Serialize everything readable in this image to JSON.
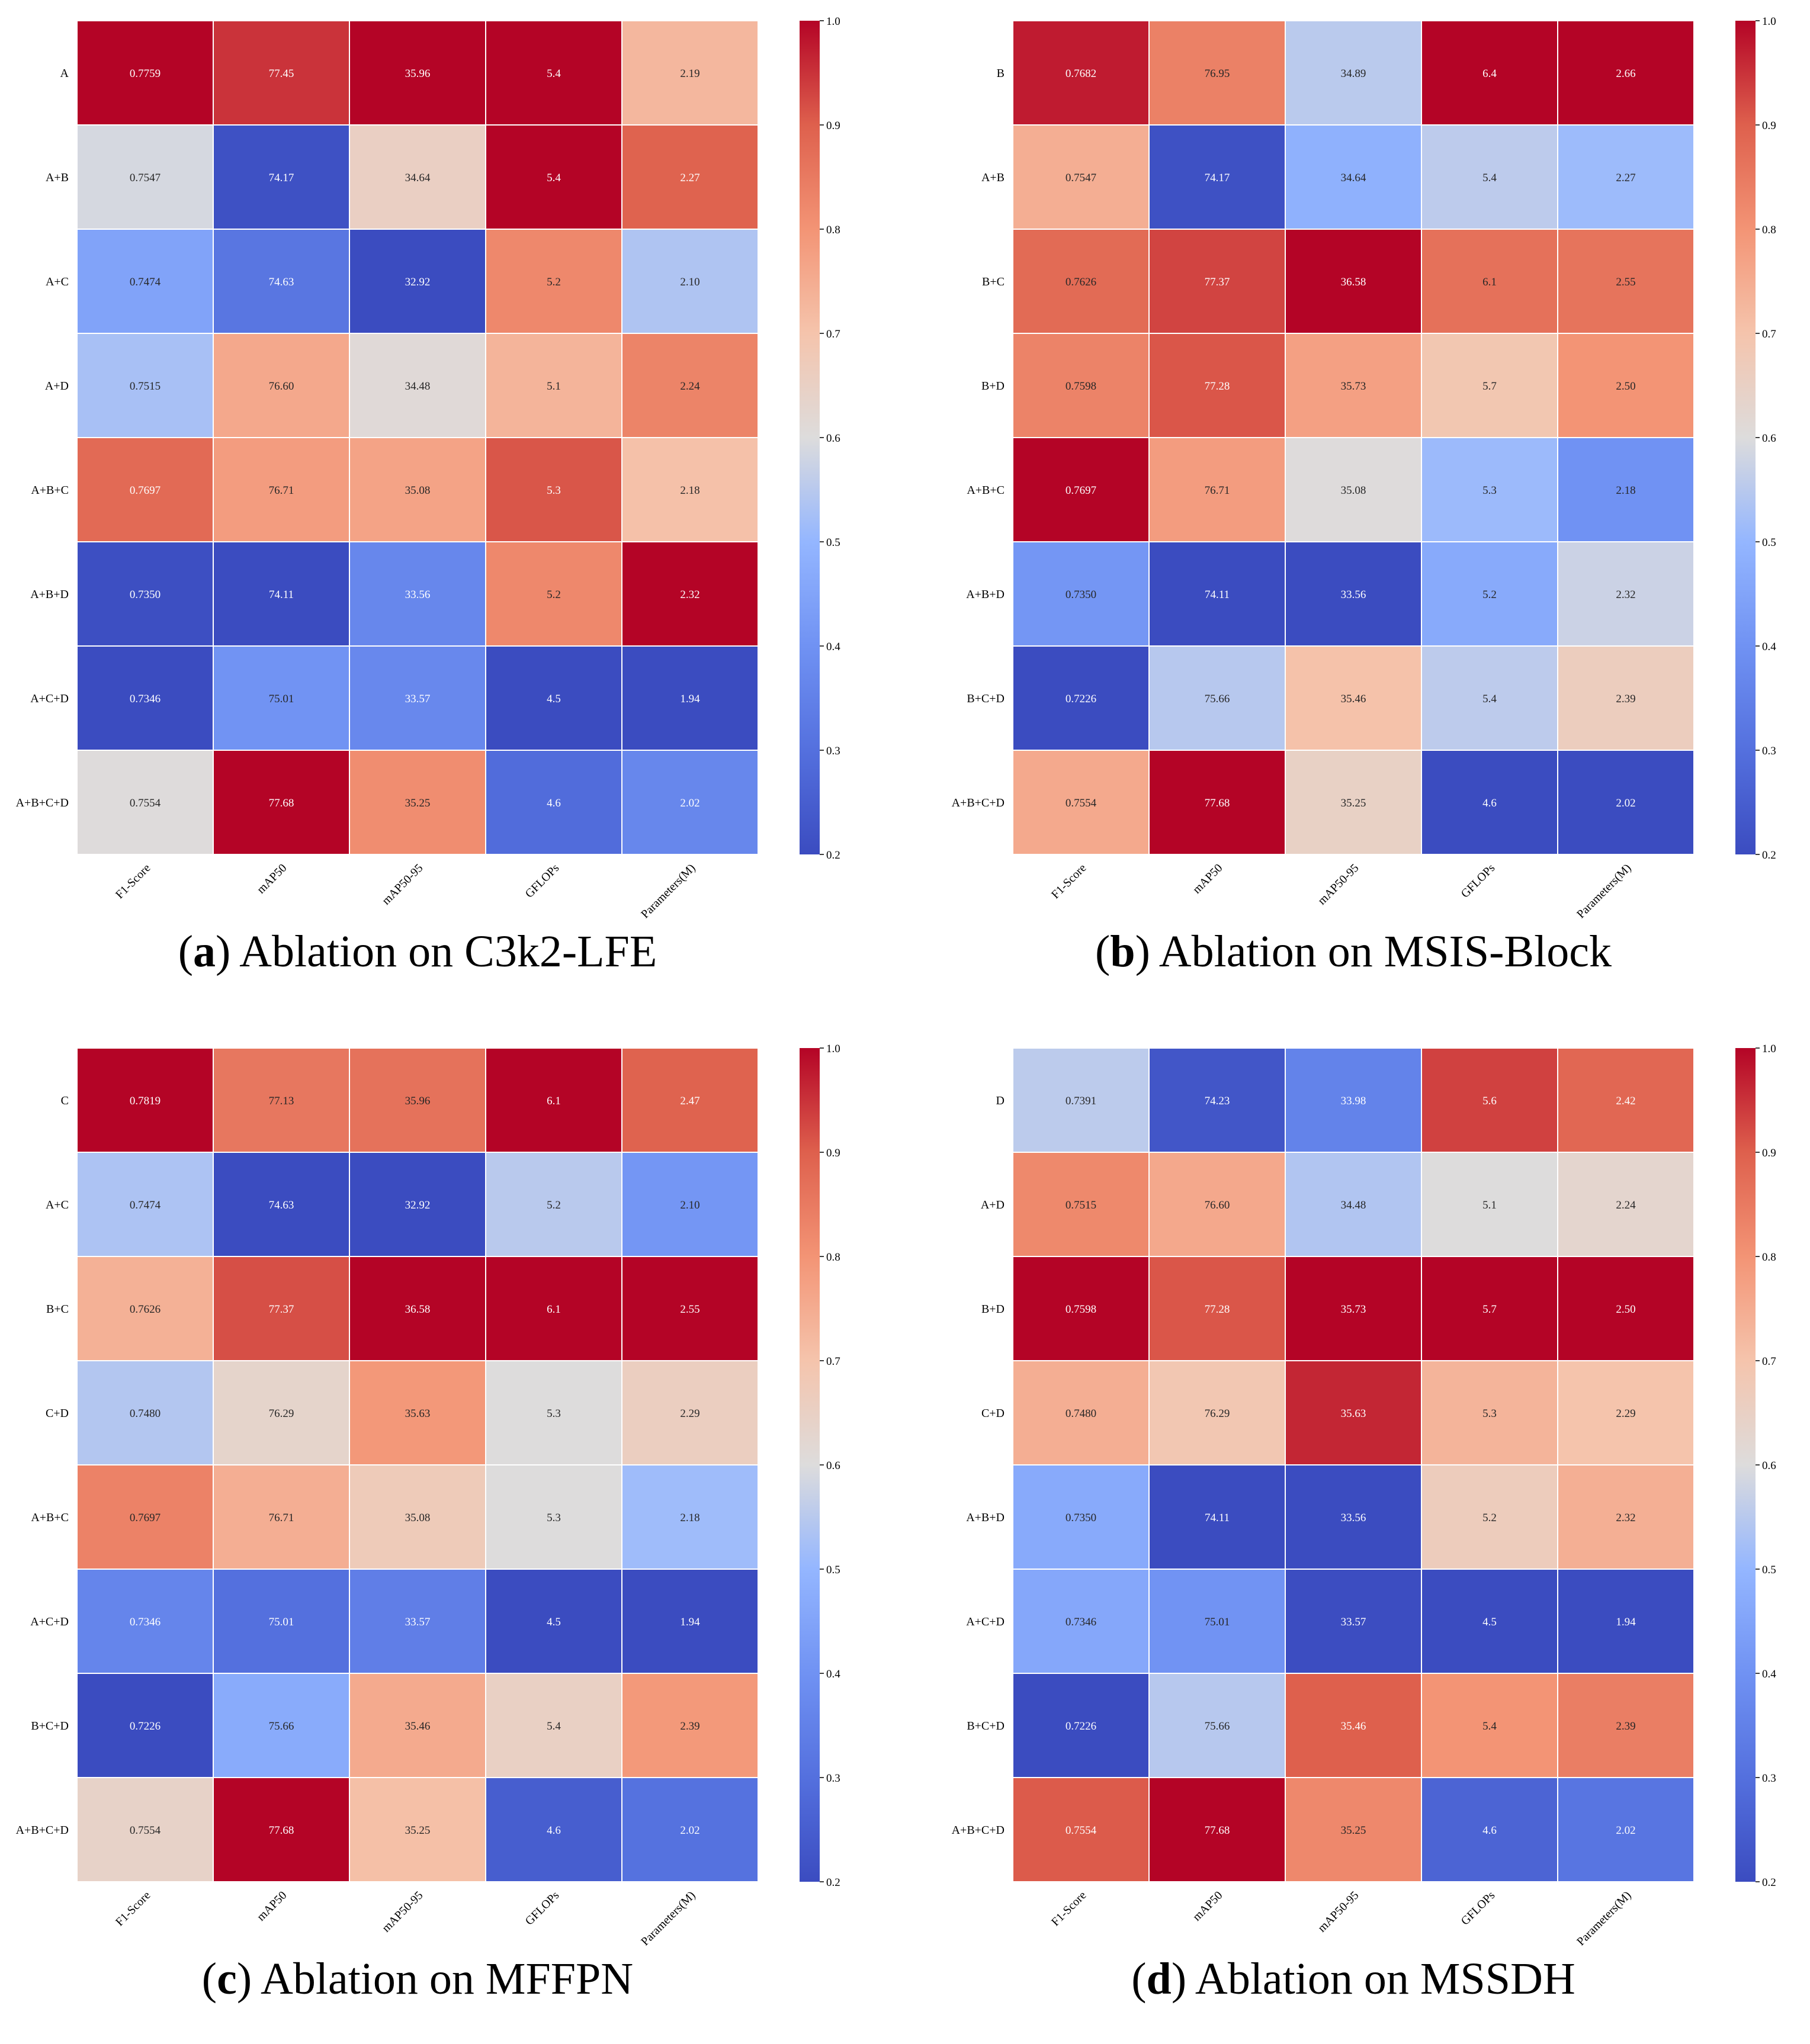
{
  "figure": {
    "panels": [
      {
        "caption": {
          "letter": "(a)",
          "text": "Ablation on C3k2-LFE"
        },
        "chart_data": {
          "type": "heatmap",
          "rows": [
            "A",
            "A+B",
            "A+C",
            "A+D",
            "A+B+C",
            "A+B+D",
            "A+C+D",
            "A+B+C+D"
          ],
          "columns": [
            "F1-Score",
            "mAP50",
            "mAP50-95",
            "GFLOPs",
            "Parameters(M)"
          ],
          "cells": [
            [
              "0.7759",
              "77.45",
              "35.96",
              "5.4",
              "2.19"
            ],
            [
              "0.7547",
              "74.17",
              "34.64",
              "5.4",
              "2.27"
            ],
            [
              "0.7474",
              "74.63",
              "32.92",
              "5.2",
              "2.10"
            ],
            [
              "0.7515",
              "76.60",
              "34.48",
              "5.1",
              "2.24"
            ],
            [
              "0.7697",
              "76.71",
              "35.08",
              "5.3",
              "2.18"
            ],
            [
              "0.7350",
              "74.11",
              "33.56",
              "5.2",
              "2.32"
            ],
            [
              "0.7346",
              "75.01",
              "33.57",
              "4.5",
              "1.94"
            ],
            [
              "0.7554",
              "77.68",
              "35.25",
              "4.6",
              "2.02"
            ]
          ],
          "colorbar": {
            "min": 0.2,
            "max": 1.0,
            "ticks": [
              "0.2",
              "0.3",
              "0.4",
              "0.5",
              "0.6",
              "0.7",
              "0.8",
              "0.9",
              "1.0"
            ]
          }
        }
      },
      {
        "caption": {
          "letter": "(b)",
          "text": "Ablation on MSIS-Block"
        },
        "chart_data": {
          "type": "heatmap",
          "rows": [
            "B",
            "A+B",
            "B+C",
            "B+D",
            "A+B+C",
            "A+B+D",
            "B+C+D",
            "A+B+C+D"
          ],
          "columns": [
            "F1-Score",
            "mAP50",
            "mAP50-95",
            "GFLOPs",
            "Parameters(M)"
          ],
          "cells": [
            [
              "0.7682",
              "76.95",
              "34.89",
              "6.4",
              "2.66"
            ],
            [
              "0.7547",
              "74.17",
              "34.64",
              "5.4",
              "2.27"
            ],
            [
              "0.7626",
              "77.37",
              "36.58",
              "6.1",
              "2.55"
            ],
            [
              "0.7598",
              "77.28",
              "35.73",
              "5.7",
              "2.50"
            ],
            [
              "0.7697",
              "76.71",
              "35.08",
              "5.3",
              "2.18"
            ],
            [
              "0.7350",
              "74.11",
              "33.56",
              "5.2",
              "2.32"
            ],
            [
              "0.7226",
              "75.66",
              "35.46",
              "5.4",
              "2.39"
            ],
            [
              "0.7554",
              "77.68",
              "35.25",
              "4.6",
              "2.02"
            ]
          ],
          "colorbar": {
            "min": 0.2,
            "max": 1.0,
            "ticks": [
              "0.2",
              "0.3",
              "0.4",
              "0.5",
              "0.6",
              "0.7",
              "0.8",
              "0.9",
              "1.0"
            ]
          }
        }
      },
      {
        "caption": {
          "letter": "(c)",
          "text": "Ablation on MFFPN"
        },
        "chart_data": {
          "type": "heatmap",
          "rows": [
            "C",
            "A+C",
            "B+C",
            "C+D",
            "A+B+C",
            "A+C+D",
            "B+C+D",
            "A+B+C+D"
          ],
          "columns": [
            "F1-Score",
            "mAP50",
            "mAP50-95",
            "GFLOPs",
            "Parameters(M)"
          ],
          "cells": [
            [
              "0.7819",
              "77.13",
              "35.96",
              "6.1",
              "2.47"
            ],
            [
              "0.7474",
              "74.63",
              "32.92",
              "5.2",
              "2.10"
            ],
            [
              "0.7626",
              "77.37",
              "36.58",
              "6.1",
              "2.55"
            ],
            [
              "0.7480",
              "76.29",
              "35.63",
              "5.3",
              "2.29"
            ],
            [
              "0.7697",
              "76.71",
              "35.08",
              "5.3",
              "2.18"
            ],
            [
              "0.7346",
              "75.01",
              "33.57",
              "4.5",
              "1.94"
            ],
            [
              "0.7226",
              "75.66",
              "35.46",
              "5.4",
              "2.39"
            ],
            [
              "0.7554",
              "77.68",
              "35.25",
              "4.6",
              "2.02"
            ]
          ],
          "colorbar": {
            "min": 0.2,
            "max": 1.0,
            "ticks": [
              "0.2",
              "0.3",
              "0.4",
              "0.5",
              "0.6",
              "0.7",
              "0.8",
              "0.9",
              "1.0"
            ]
          }
        }
      },
      {
        "caption": {
          "letter": "(d)",
          "text": "Ablation on MSSDH"
        },
        "chart_data": {
          "type": "heatmap",
          "rows": [
            "D",
            "A+D",
            "B+D",
            "C+D",
            "A+B+D",
            "A+C+D",
            "B+C+D",
            "A+B+C+D"
          ],
          "columns": [
            "F1-Score",
            "mAP50",
            "mAP50-95",
            "GFLOPs",
            "Parameters(M)"
          ],
          "cells": [
            [
              "0.7391",
              "74.23",
              "33.98",
              "5.6",
              "2.42"
            ],
            [
              "0.7515",
              "76.60",
              "34.48",
              "5.1",
              "2.24"
            ],
            [
              "0.7598",
              "77.28",
              "35.73",
              "5.7",
              "2.50"
            ],
            [
              "0.7480",
              "76.29",
              "35.63",
              "5.3",
              "2.29"
            ],
            [
              "0.7350",
              "74.11",
              "33.56",
              "5.2",
              "2.32"
            ],
            [
              "0.7346",
              "75.01",
              "33.57",
              "4.5",
              "1.94"
            ],
            [
              "0.7226",
              "75.66",
              "35.46",
              "5.4",
              "2.39"
            ],
            [
              "0.7554",
              "77.68",
              "35.25",
              "4.6",
              "2.02"
            ]
          ],
          "colorbar": {
            "min": 0.2,
            "max": 1.0,
            "ticks": [
              "0.2",
              "0.3",
              "0.4",
              "0.5",
              "0.6",
              "0.7",
              "0.8",
              "0.9",
              "1.0"
            ]
          }
        }
      }
    ]
  }
}
